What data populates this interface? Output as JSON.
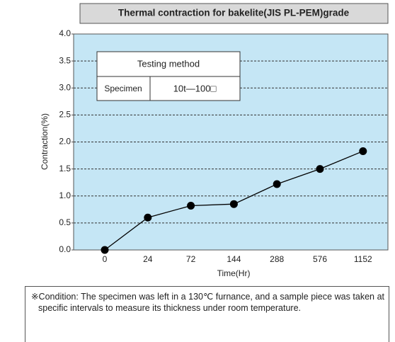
{
  "chart_data": {
    "type": "line",
    "title": "Thermal contraction for bakelite(JIS PL-PEM)grade",
    "x_label": "Time(Hr)",
    "y_label": "Contraction(%)",
    "categories": [
      "0",
      "24",
      "72",
      "144",
      "288",
      "576",
      "1152"
    ],
    "values": [
      0,
      0.6,
      0.82,
      0.85,
      1.22,
      1.5,
      1.83
    ],
    "color": "#000000",
    "ylim": [
      0,
      4
    ],
    "yticks": [
      {
        "value": 0,
        "label": "0.0"
      },
      {
        "value": 0.5,
        "label": "0.5"
      },
      {
        "value": 1,
        "label": "1.0"
      },
      {
        "value": 1.5,
        "label": "1.5"
      },
      {
        "value": 2,
        "label": "2.0"
      },
      {
        "value": 2.5,
        "label": "2.5"
      },
      {
        "value": 3,
        "label": "3.0"
      },
      {
        "value": 3.5,
        "label": "3.5"
      },
      {
        "value": 4,
        "label": "4.0"
      }
    ],
    "grid": true
  },
  "inset": {
    "header": "Testing method",
    "rows": [
      [
        "Specimen",
        "10t—100□"
      ]
    ]
  },
  "note": "※Condition: The specimen was left in a 130℃ furnance, and a sample piece was taken at specific intervals to measure its thickness under room temperature."
}
